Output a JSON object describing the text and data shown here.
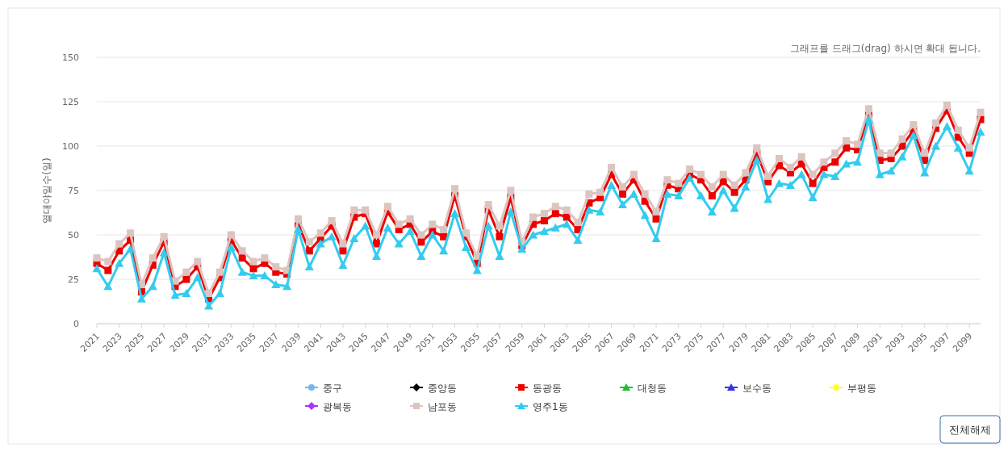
{
  "chart_data": {
    "type": "line",
    "ylabel": "열대야일수(일)",
    "annotations": [
      "그래프를 드래그(drag) 하시면 확대 됩니다.",
      "전체해제"
    ],
    "x": [
      2021,
      2022,
      2023,
      2024,
      2025,
      2026,
      2027,
      2028,
      2029,
      2030,
      2031,
      2032,
      2033,
      2034,
      2035,
      2036,
      2037,
      2038,
      2039,
      2040,
      2041,
      2042,
      2043,
      2044,
      2045,
      2046,
      2047,
      2048,
      2049,
      2050,
      2051,
      2052,
      2053,
      2054,
      2055,
      2056,
      2057,
      2058,
      2059,
      2060,
      2061,
      2062,
      2063,
      2064,
      2065,
      2066,
      2067,
      2068,
      2069,
      2070,
      2071,
      2072,
      2073,
      2074,
      2075,
      2076,
      2077,
      2078,
      2079,
      2080,
      2081,
      2082,
      2083,
      2084,
      2085,
      2086,
      2087,
      2088,
      2089,
      2090,
      2091,
      2092,
      2093,
      2094,
      2095,
      2096,
      2097,
      2098,
      2099,
      2100
    ],
    "xlim": [
      2021,
      2100
    ],
    "xticks": [
      2021,
      2023,
      2025,
      2027,
      2029,
      2031,
      2033,
      2035,
      2037,
      2039,
      2041,
      2043,
      2045,
      2047,
      2049,
      2051,
      2053,
      2055,
      2057,
      2059,
      2061,
      2063,
      2065,
      2067,
      2069,
      2071,
      2073,
      2075,
      2077,
      2079,
      2081,
      2083,
      2085,
      2087,
      2089,
      2091,
      2093,
      2095,
      2097,
      2099
    ],
    "ylim": [
      0,
      150
    ],
    "yticks": [
      0,
      25,
      50,
      75,
      100,
      125,
      150
    ],
    "grid": "y",
    "legend": "bottom",
    "series": [
      {
        "name": "중구",
        "color": "#7cb5ec",
        "marker": "circle",
        "values": [
          null,
          null,
          null,
          null,
          null,
          null,
          null,
          null,
          null,
          null,
          null,
          null,
          null,
          null,
          null,
          null,
          null,
          null,
          null,
          null,
          null,
          null,
          null,
          null,
          null,
          null,
          null,
          null,
          null,
          null,
          null,
          null,
          null,
          null,
          null,
          null,
          null,
          null,
          null,
          null,
          null,
          null,
          null,
          null,
          null,
          null,
          null,
          null,
          null,
          null,
          null,
          null,
          null,
          null,
          null,
          null,
          null,
          null,
          null,
          null,
          null,
          null,
          null,
          null,
          null,
          null,
          null,
          null,
          null,
          null,
          null,
          null,
          null,
          null,
          null,
          null,
          null,
          null,
          null,
          null
        ]
      },
      {
        "name": "중앙동",
        "color": "#000000",
        "marker": "diamond",
        "values": [
          null,
          null,
          null,
          null,
          null,
          null,
          null,
          null,
          null,
          null,
          null,
          null,
          null,
          null,
          null,
          null,
          null,
          null,
          null,
          null,
          null,
          null,
          null,
          null,
          null,
          null,
          null,
          null,
          null,
          null,
          null,
          null,
          null,
          null,
          null,
          null,
          null,
          null,
          null,
          null,
          null,
          null,
          null,
          null,
          null,
          null,
          null,
          null,
          null,
          null,
          null,
          null,
          null,
          null,
          null,
          null,
          null,
          null,
          null,
          null,
          null,
          null,
          null,
          null,
          null,
          null,
          null,
          null,
          null,
          null,
          null,
          null,
          null,
          null,
          null,
          null,
          null,
          null,
          null,
          null
        ]
      },
      {
        "name": "동광동",
        "color": "#ee0000",
        "marker": "square",
        "values": [
          34,
          30,
          41,
          47,
          18,
          33,
          46,
          21,
          25,
          32,
          14,
          26,
          47,
          37,
          31,
          34,
          29,
          28,
          56,
          41,
          48,
          55,
          41,
          60,
          62,
          45,
          63,
          53,
          56,
          46,
          52,
          49,
          72,
          49,
          34,
          64,
          49,
          71,
          44,
          56,
          58,
          62,
          60,
          53,
          68,
          71,
          84,
          73,
          81,
          69,
          59,
          78,
          76,
          84,
          81,
          72,
          80,
          74,
          81,
          96,
          80,
          89,
          85,
          90,
          79,
          88,
          91,
          99,
          98,
          118,
          92,
          93,
          100,
          109,
          92,
          110,
          120,
          105,
          96,
          115
        ]
      },
      {
        "name": "대청동",
        "color": "#22bb33",
        "marker": "triangle",
        "values": [
          null,
          null,
          null,
          null,
          null,
          null,
          null,
          null,
          null,
          null,
          null,
          null,
          null,
          null,
          null,
          null,
          null,
          null,
          null,
          null,
          null,
          null,
          null,
          null,
          null,
          null,
          null,
          null,
          null,
          null,
          null,
          null,
          null,
          null,
          null,
          null,
          null,
          null,
          null,
          null,
          null,
          null,
          null,
          null,
          null,
          null,
          null,
          null,
          null,
          null,
          null,
          null,
          null,
          null,
          null,
          null,
          null,
          null,
          null,
          null,
          null,
          null,
          null,
          null,
          null,
          null,
          null,
          null,
          null,
          null,
          null,
          null,
          null,
          null,
          null,
          null,
          null,
          null,
          null,
          null
        ]
      },
      {
        "name": "보수동",
        "color": "#3333ee",
        "marker": "triangle",
        "values": [
          null,
          null,
          null,
          null,
          null,
          null,
          null,
          null,
          null,
          null,
          null,
          null,
          null,
          null,
          null,
          null,
          null,
          null,
          null,
          null,
          null,
          null,
          null,
          null,
          null,
          null,
          null,
          null,
          null,
          null,
          null,
          null,
          null,
          null,
          null,
          null,
          null,
          null,
          null,
          null,
          null,
          null,
          null,
          null,
          null,
          null,
          null,
          null,
          null,
          null,
          null,
          null,
          null,
          null,
          null,
          null,
          null,
          null,
          null,
          null,
          null,
          null,
          null,
          null,
          null,
          null,
          null,
          null,
          null,
          null,
          null,
          null,
          null,
          null,
          null,
          null,
          null,
          null,
          null,
          null
        ]
      },
      {
        "name": "부평동",
        "color": "#ffff33",
        "marker": "circle",
        "values": [
          null,
          null,
          null,
          null,
          null,
          null,
          null,
          null,
          null,
          null,
          null,
          null,
          null,
          null,
          null,
          null,
          null,
          null,
          null,
          null,
          null,
          null,
          null,
          null,
          null,
          null,
          null,
          null,
          null,
          null,
          null,
          null,
          null,
          null,
          null,
          null,
          null,
          null,
          null,
          null,
          null,
          null,
          null,
          null,
          null,
          null,
          null,
          null,
          null,
          null,
          null,
          null,
          null,
          null,
          null,
          null,
          null,
          null,
          null,
          null,
          null,
          null,
          null,
          null,
          null,
          null,
          null,
          null,
          null,
          null,
          null,
          null,
          null,
          null,
          null,
          null,
          null,
          null,
          null,
          null
        ]
      },
      {
        "name": "광복동",
        "color": "#aa33ff",
        "marker": "diamond",
        "values": [
          null,
          null,
          null,
          null,
          null,
          null,
          null,
          null,
          null,
          null,
          null,
          null,
          null,
          null,
          null,
          null,
          null,
          null,
          null,
          null,
          null,
          null,
          null,
          null,
          null,
          null,
          null,
          null,
          null,
          null,
          null,
          null,
          null,
          null,
          null,
          null,
          null,
          null,
          null,
          null,
          null,
          null,
          null,
          null,
          null,
          null,
          null,
          null,
          null,
          null,
          null,
          null,
          null,
          null,
          null,
          null,
          null,
          null,
          null,
          null,
          null,
          null,
          null,
          null,
          null,
          null,
          null,
          null,
          null,
          null,
          null,
          null,
          null,
          null,
          null,
          null,
          null,
          null,
          null,
          null
        ]
      },
      {
        "name": "남포동",
        "color": "#dcc4c0",
        "marker": "square",
        "values": [
          37,
          35,
          45,
          51,
          22,
          37,
          49,
          24,
          29,
          35,
          17,
          29,
          50,
          41,
          35,
          37,
          32,
          30,
          59,
          46,
          51,
          58,
          45,
          64,
          64,
          50,
          66,
          56,
          59,
          50,
          56,
          53,
          76,
          51,
          38,
          67,
          55,
          75,
          46,
          60,
          62,
          66,
          64,
          57,
          73,
          74,
          88,
          77,
          84,
          73,
          63,
          81,
          79,
          87,
          84,
          77,
          84,
          78,
          85,
          99,
          83,
          93,
          88,
          94,
          84,
          91,
          96,
          103,
          101,
          121,
          96,
          96,
          104,
          112,
          96,
          113,
          123,
          109,
          99,
          119
        ]
      },
      {
        "name": "영주1동",
        "color": "#33ccee",
        "marker": "triangle",
        "values": [
          31,
          21,
          34,
          42,
          14,
          21,
          40,
          16,
          17,
          26,
          10,
          17,
          43,
          29,
          27,
          27,
          22,
          21,
          53,
          32,
          45,
          49,
          33,
          48,
          55,
          38,
          54,
          45,
          52,
          38,
          50,
          41,
          62,
          43,
          30,
          55,
          38,
          63,
          42,
          50,
          52,
          54,
          56,
          47,
          64,
          63,
          78,
          67,
          73,
          61,
          48,
          73,
          72,
          82,
          72,
          63,
          75,
          65,
          77,
          92,
          70,
          79,
          78,
          84,
          71,
          84,
          83,
          90,
          91,
          115,
          84,
          86,
          94,
          106,
          85,
          100,
          111,
          99,
          86,
          108
        ]
      }
    ]
  }
}
